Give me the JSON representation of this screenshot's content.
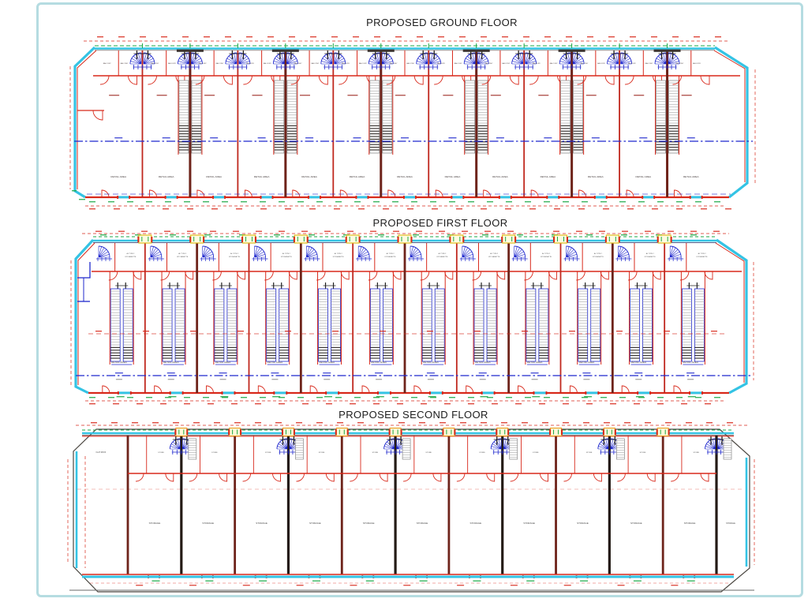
{
  "page": {
    "background": "#ffffff",
    "border_color": "#b5dce1"
  },
  "palette": {
    "wall_red": "#d8291b",
    "party_maroon": "#6e231a",
    "party_black": "#241b16",
    "cyan": "#34c3e4",
    "green": "#1aa844",
    "blue": "#1f28cd",
    "stair_gray": "#8f8f8f",
    "yellow_border": "#e0bd1e",
    "orange_border": "#e89b20",
    "dim_red": "#d8291b"
  },
  "floors": [
    {
      "id": "ground",
      "title": "PROPOSED GROUND FLOOR",
      "bays": 13,
      "labels": {
        "balcony": "BALCONY",
        "retail": "RETAIL AREA"
      }
    },
    {
      "id": "first",
      "title": "PROPOSED FIRST FLOOR",
      "units": 12,
      "labels": {
        "unit_line1": "AL TYPE 2",
        "unit_line2": "KITCHENETTE",
        "retail": "RETAIL AREA"
      }
    },
    {
      "id": "second",
      "title": "PROPOSED SECOND FLOOR",
      "storage_bays": 11,
      "labels": {
        "flat_roof": "FLAT ROOF",
        "store": "STORE",
        "storage": "STORAGE"
      }
    }
  ]
}
